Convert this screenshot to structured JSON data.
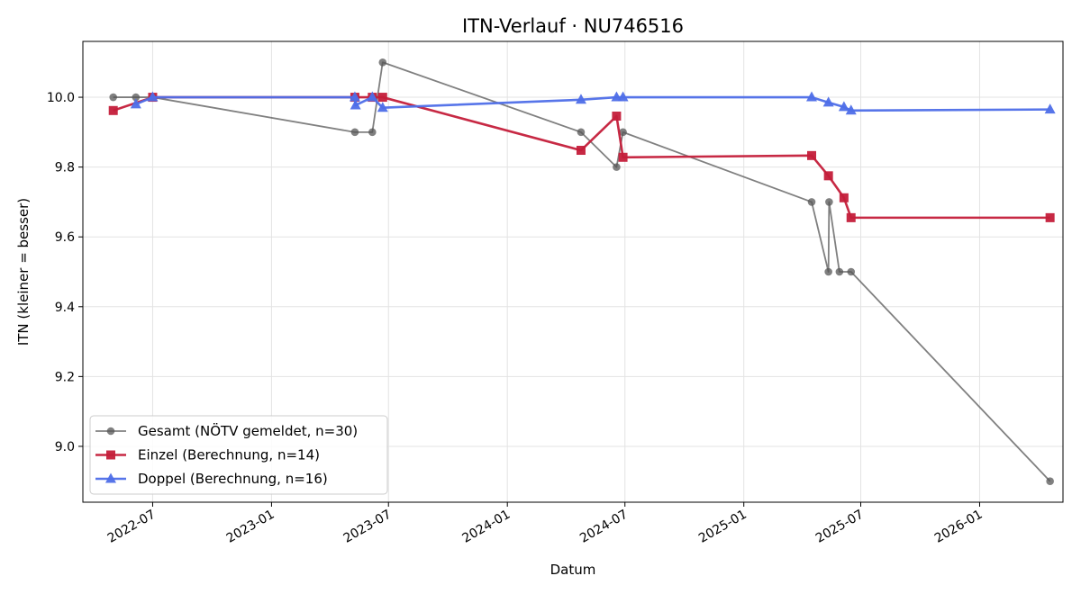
{
  "chart_data": {
    "type": "line",
    "title": "ITN-Verlauf · NU746516",
    "xlabel": "Datum",
    "ylabel": "ITN  (kleiner = besser)",
    "x_ticks": [
      "2022-07",
      "2023-01",
      "2023-07",
      "2024-01",
      "2024-07",
      "2025-01",
      "2025-07",
      "2026-01"
    ],
    "y_ticks": [
      "9.0",
      "9.2",
      "9.4",
      "9.6",
      "9.8",
      "10.0"
    ],
    "xlim": [
      "2022-03-15",
      "2026-05-10"
    ],
    "ylim": [
      8.84,
      10.16
    ],
    "grid": true,
    "legend_position": "lower-left",
    "series": [
      {
        "name": "Gesamt (NÖTV gemeldet, n=30)",
        "color": "#555555",
        "marker": "circle",
        "points": [
          {
            "x": "2022-05-01",
            "y": 10.0
          },
          {
            "x": "2022-06-05",
            "y": 10.0
          },
          {
            "x": "2022-07-01",
            "y": 10.0
          },
          {
            "x": "2023-05-10",
            "y": 9.9
          },
          {
            "x": "2023-06-06",
            "y": 9.9
          },
          {
            "x": "2023-06-22",
            "y": 10.1
          },
          {
            "x": "2024-04-24",
            "y": 9.9
          },
          {
            "x": "2024-06-18",
            "y": 9.8
          },
          {
            "x": "2024-06-28",
            "y": 9.9
          },
          {
            "x": "2025-04-16",
            "y": 9.7
          },
          {
            "x": "2025-05-12",
            "y": 9.5
          },
          {
            "x": "2025-05-13",
            "y": 9.7
          },
          {
            "x": "2025-05-29",
            "y": 9.5
          },
          {
            "x": "2025-06-16",
            "y": 9.5
          },
          {
            "x": "2026-04-20",
            "y": 8.9
          }
        ]
      },
      {
        "name": "Einzel (Berechnung, n=14)",
        "color": "#c41e3a",
        "marker": "square",
        "points": [
          {
            "x": "2022-05-01",
            "y": 9.962
          },
          {
            "x": "2022-07-01",
            "y": 10.0
          },
          {
            "x": "2023-05-10",
            "y": 10.0
          },
          {
            "x": "2023-06-06",
            "y": 10.0
          },
          {
            "x": "2023-06-22",
            "y": 10.0
          },
          {
            "x": "2024-04-24",
            "y": 9.848
          },
          {
            "x": "2024-06-18",
            "y": 9.946
          },
          {
            "x": "2024-06-28",
            "y": 9.828
          },
          {
            "x": "2025-04-16",
            "y": 9.833
          },
          {
            "x": "2025-05-12",
            "y": 9.775
          },
          {
            "x": "2025-06-05",
            "y": 9.712
          },
          {
            "x": "2025-06-16",
            "y": 9.655
          },
          {
            "x": "2026-04-20",
            "y": 9.655
          }
        ]
      },
      {
        "name": "Doppel (Berechnung, n=16)",
        "color": "#4e6ee8",
        "marker": "triangle",
        "points": [
          {
            "x": "2022-06-05",
            "y": 9.98
          },
          {
            "x": "2022-07-01",
            "y": 10.0
          },
          {
            "x": "2023-05-10",
            "y": 10.0
          },
          {
            "x": "2023-05-11",
            "y": 9.977
          },
          {
            "x": "2023-06-06",
            "y": 10.0
          },
          {
            "x": "2023-06-22",
            "y": 9.97
          },
          {
            "x": "2024-04-24",
            "y": 9.993
          },
          {
            "x": "2024-06-18",
            "y": 10.0
          },
          {
            "x": "2024-06-28",
            "y": 10.0
          },
          {
            "x": "2025-04-16",
            "y": 10.0
          },
          {
            "x": "2025-05-12",
            "y": 9.985
          },
          {
            "x": "2025-06-05",
            "y": 9.972
          },
          {
            "x": "2025-06-16",
            "y": 9.962
          },
          {
            "x": "2026-04-20",
            "y": 9.965
          }
        ]
      }
    ]
  }
}
